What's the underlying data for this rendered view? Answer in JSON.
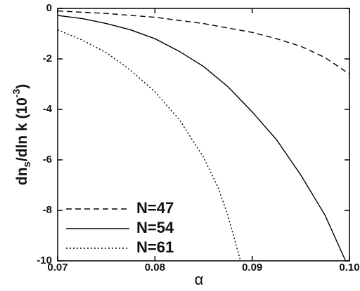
{
  "chart_data": {
    "type": "line",
    "xlabel": "α",
    "ylabel": [
      "dn",
      "s",
      "/dln k (10",
      "-3",
      ")"
    ],
    "xlim": [
      0.07,
      0.1
    ],
    "xticks": [
      0.07,
      0.08,
      0.09,
      {
        "value": 0.1,
        "label": "0.10"
      }
    ],
    "ylim": [
      -10,
      0
    ],
    "yticks": [
      0,
      -2,
      -4,
      -6,
      -8,
      -10
    ],
    "legend": "lower left",
    "series": [
      {
        "name": "N=47",
        "color": "#000000",
        "dash": "dashed",
        "x": [
          0.07,
          0.075,
          0.08,
          0.085,
          0.09,
          0.0925,
          0.095,
          0.0975,
          0.1
        ],
        "values": [
          -0.1,
          -0.2,
          -0.35,
          -0.6,
          -0.95,
          -1.2,
          -1.5,
          -1.95,
          -2.6
        ]
      },
      {
        "name": "N=54",
        "color": "#000000",
        "dash": "solid",
        "x": [
          0.07,
          0.0725,
          0.075,
          0.0775,
          0.08,
          0.0825,
          0.085,
          0.0875,
          0.09,
          0.0925,
          0.095,
          0.0975,
          0.0996
        ],
        "values": [
          -0.28,
          -0.4,
          -0.6,
          -0.85,
          -1.2,
          -1.7,
          -2.3,
          -3.1,
          -4.1,
          -5.2,
          -6.6,
          -8.2,
          -10
        ]
      },
      {
        "name": "N=61",
        "color": "#000000",
        "dash": "dotted",
        "x": [
          0.07,
          0.0725,
          0.075,
          0.0775,
          0.08,
          0.0825,
          0.085,
          0.0865,
          0.0875,
          0.0888
        ],
        "values": [
          -0.85,
          -1.25,
          -1.75,
          -2.45,
          -3.3,
          -4.4,
          -5.9,
          -7.1,
          -8.2,
          -10
        ]
      }
    ]
  }
}
